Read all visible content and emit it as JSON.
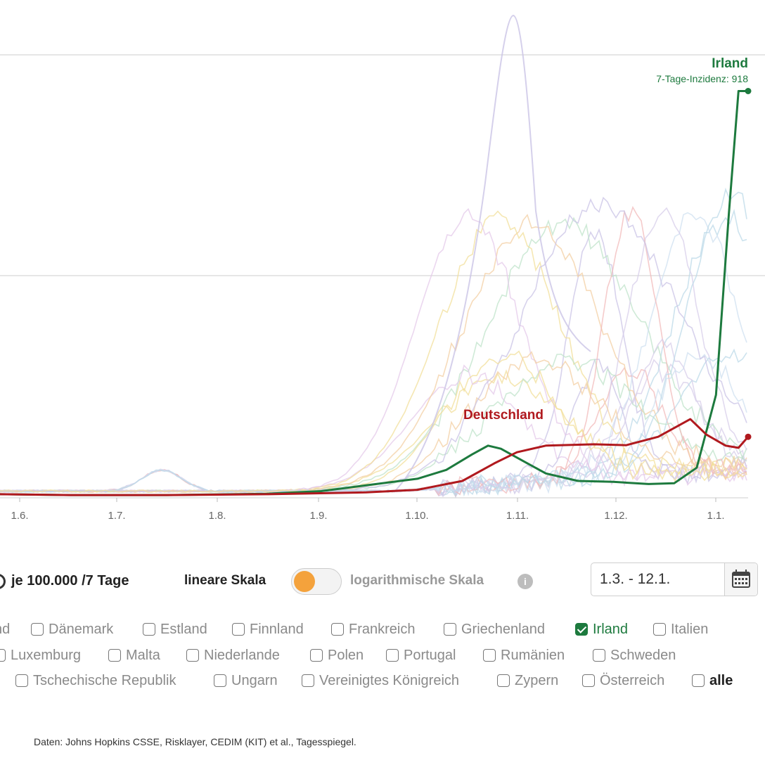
{
  "chart_data": {
    "type": "line",
    "x_ticks": [
      "1.6.",
      "1.7.",
      "1.8.",
      "1.9.",
      "1.10.",
      "1.11.",
      "1.12.",
      "1.1."
    ],
    "x_range": [
      "2020-05-24",
      "2021-01-12"
    ],
    "gridlines_y": [
      250,
      500
    ],
    "y_range": [
      0,
      1000
    ],
    "highlight_series": [
      {
        "name": "Irland",
        "annotation": "7-Tage-Inzidenz: 918",
        "color": "#1d7a3e",
        "points": [
          [
            "2020-05-24",
            5
          ],
          [
            "2020-06-15",
            3
          ],
          [
            "2020-07-15",
            3
          ],
          [
            "2020-08-15",
            6
          ],
          [
            "2020-09-01",
            12
          ],
          [
            "2020-09-15",
            25
          ],
          [
            "2020-10-01",
            40
          ],
          [
            "2020-10-10",
            60
          ],
          [
            "2020-10-18",
            95
          ],
          [
            "2020-10-23",
            115
          ],
          [
            "2020-10-27",
            108
          ],
          [
            "2020-11-03",
            80
          ],
          [
            "2020-11-10",
            52
          ],
          [
            "2020-11-20",
            35
          ],
          [
            "2020-12-01",
            33
          ],
          [
            "2020-12-12",
            28
          ],
          [
            "2020-12-20",
            30
          ],
          [
            "2020-12-27",
            65
          ],
          [
            "2021-01-02",
            230
          ],
          [
            "2021-01-06",
            640
          ],
          [
            "2021-01-09",
            918
          ],
          [
            "2021-01-12",
            918
          ]
        ]
      },
      {
        "name": "Deutschland",
        "color": "#b0191e",
        "points": [
          [
            "2020-05-24",
            5
          ],
          [
            "2020-06-15",
            3
          ],
          [
            "2020-07-15",
            3
          ],
          [
            "2020-08-15",
            5
          ],
          [
            "2020-09-15",
            9
          ],
          [
            "2020-10-01",
            15
          ],
          [
            "2020-10-15",
            35
          ],
          [
            "2020-10-25",
            75
          ],
          [
            "2020-11-01",
            100
          ],
          [
            "2020-11-10",
            115
          ],
          [
            "2020-11-25",
            118
          ],
          [
            "2020-12-05",
            116
          ],
          [
            "2020-12-15",
            135
          ],
          [
            "2020-12-25",
            175
          ],
          [
            "2020-12-30",
            140
          ],
          [
            "2021-01-05",
            115
          ],
          [
            "2021-01-09",
            110
          ],
          [
            "2021-01-12",
            135
          ]
        ]
      }
    ]
  },
  "controls": {
    "unit_label": "je 100.000 /7 Tage",
    "linear_label": "lineare Skala",
    "log_label": "logarithmische Skala",
    "info_label": "i",
    "date_range": "1.3. - 12.1.",
    "linear_active": true
  },
  "countries": [
    {
      "label": "nd",
      "checked": false,
      "row": 0
    },
    {
      "label": "Dänemark",
      "checked": false,
      "row": 0
    },
    {
      "label": "Estland",
      "checked": false,
      "row": 0
    },
    {
      "label": "Finnland",
      "checked": false,
      "row": 0
    },
    {
      "label": "Frankreich",
      "checked": false,
      "row": 0
    },
    {
      "label": "Griechenland",
      "checked": false,
      "row": 0
    },
    {
      "label": "Irland",
      "checked": true,
      "row": 0
    },
    {
      "label": "Italien",
      "checked": false,
      "row": 0
    },
    {
      "label": "Luxemburg",
      "checked": false,
      "row": 1
    },
    {
      "label": "Malta",
      "checked": false,
      "row": 1
    },
    {
      "label": "Niederlande",
      "checked": false,
      "row": 1
    },
    {
      "label": "Polen",
      "checked": false,
      "row": 1
    },
    {
      "label": "Portugal",
      "checked": false,
      "row": 1
    },
    {
      "label": "Rumänien",
      "checked": false,
      "row": 1
    },
    {
      "label": "Schweden",
      "checked": false,
      "row": 1
    },
    {
      "label": "Tschechische Republik",
      "checked": false,
      "row": 2
    },
    {
      "label": "Ungarn",
      "checked": false,
      "row": 2
    },
    {
      "label": "Vereinigtes Königreich",
      "checked": false,
      "row": 2
    },
    {
      "label": "Zypern",
      "checked": false,
      "row": 2
    },
    {
      "label": "Österreich",
      "checked": false,
      "row": 2
    },
    {
      "label": "alle",
      "checked": false,
      "row": 2,
      "bold": true
    }
  ],
  "source": "Daten: Johns Hopkins CSSE, Risklayer, CEDIM (KIT) et al., Tagesspiegel.",
  "colors": {
    "irland": "#1d7a3e",
    "deutschland": "#b0191e",
    "toggle_knob": "#f4a23c",
    "background_lines": [
      "#c9c3e6",
      "#d7cdea",
      "#bcd9e8",
      "#f2df9a",
      "#bfe3c9",
      "#f2b9b9",
      "#cfe0f0",
      "#e4c9e9",
      "#f3cfa3"
    ]
  }
}
